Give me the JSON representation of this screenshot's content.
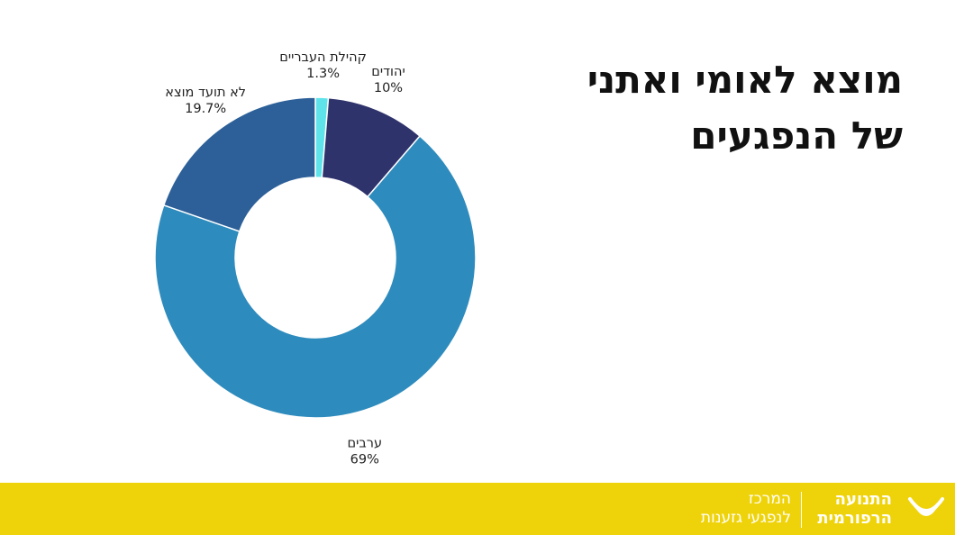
{
  "title": {
    "line1": "מוצא לאומי ואתני",
    "line2": "של הנפגעים"
  },
  "chart_data": {
    "type": "pie",
    "donut": true,
    "title": "",
    "slices": [
      {
        "label": "קהילת העבריים",
        "value": 1.3,
        "value_label": "1.3%",
        "color": "#5ee3ea"
      },
      {
        "label": "יהודים",
        "value": 10,
        "value_label": "10%",
        "color": "#2f336b"
      },
      {
        "label": "ערבים",
        "value": 69,
        "value_label": "69%",
        "color": "#2e8bbd"
      },
      {
        "label": "לא תועד מוצא",
        "value": 19.7,
        "value_label": "19.7%",
        "color": "#2d6098"
      }
    ]
  },
  "footer": {
    "org_line1": "התנועה",
    "org_line2": "הרפורמית",
    "center_line1": "המרכז",
    "center_line2": "לנפגעי גזענות",
    "background_color": "#efd30a",
    "logo_icon": "reform-movement-logo-icon"
  }
}
